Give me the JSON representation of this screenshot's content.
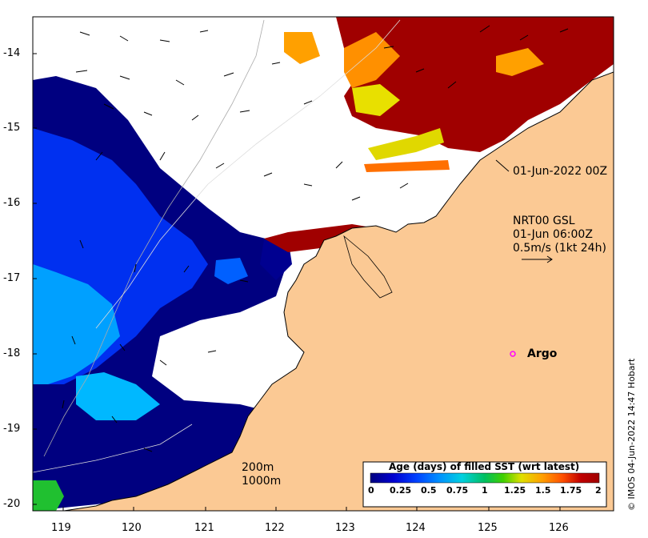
{
  "map": {
    "lon_ticks": [
      "119",
      "120",
      "121",
      "122",
      "123",
      "124",
      "125",
      "126"
    ],
    "lat_ticks": [
      "-14",
      "-15",
      "-16",
      "-17",
      "-18",
      "-19",
      "-20"
    ],
    "image_date": "01-Jun-2022 00Z",
    "current_source": "NRT00 GSL",
    "current_time": "01-Jun 06:00Z",
    "scale_label": "0.5m/s (1kt 24h)",
    "argo_label": "Argo",
    "contour_labels": [
      "200m",
      "1000m"
    ],
    "credit": "© IMOS 04-Jun-2022 14:47 Hobart",
    "colorbar": {
      "title": "Age (days) of filled SST (wrt latest)",
      "ticks": [
        "0",
        "0.25",
        "0.5",
        "0.75",
        "1",
        "1.25",
        "1.5",
        "1.75",
        "2"
      ],
      "range": [
        0,
        2
      ],
      "colors": [
        "#000080",
        "#0000d0",
        "#0040ff",
        "#0090ff",
        "#00d0e0",
        "#00c060",
        "#40d000",
        "#e0e000",
        "#ffa000",
        "#ff5000",
        "#c00000",
        "#a00000"
      ]
    },
    "colors": {
      "land": "#fbc994",
      "ocean_gap": "#ffffff",
      "argo_marker": "#ff00ff"
    }
  }
}
